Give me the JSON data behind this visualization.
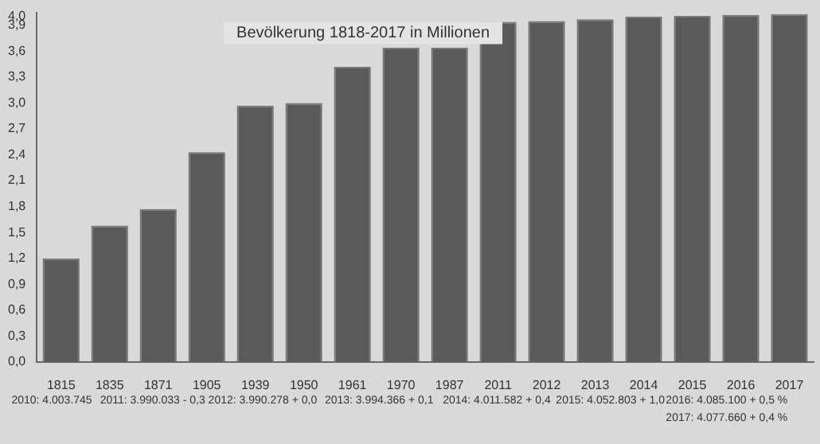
{
  "chart_data": {
    "type": "bar",
    "title": "Bevölkerung 1818-2017 in Millionen",
    "categories": [
      "1815",
      "1835",
      "1871",
      "1905",
      "1939",
      "1950",
      "1961",
      "1970",
      "1987",
      "2011",
      "2012",
      "2013",
      "2014",
      "2015",
      "2016",
      "2017"
    ],
    "values": [
      1.2,
      1.58,
      1.77,
      2.43,
      2.97,
      3.0,
      3.42,
      3.64,
      3.64,
      3.94,
      3.95,
      3.97,
      4.0,
      4.01,
      4.02,
      4.03
    ],
    "color": "#5a5a5a",
    "ylim": [
      0,
      4.05
    ],
    "yticks": [
      {
        "value": 0,
        "label": "0,0"
      },
      {
        "value": 0.3,
        "label": "0,3"
      },
      {
        "value": 0.6,
        "label": "0,6"
      },
      {
        "value": 0.9,
        "label": "0,9"
      },
      {
        "value": 1.2,
        "label": "1,2"
      },
      {
        "value": 1.5,
        "label": "1,5"
      },
      {
        "value": 1.8,
        "label": "1,8"
      },
      {
        "value": 2.1,
        "label": "2,1"
      },
      {
        "value": 2.4,
        "label": "2,4"
      },
      {
        "value": 2.7,
        "label": "2,7"
      },
      {
        "value": 3.0,
        "label": "3,0"
      },
      {
        "value": 3.3,
        "label": "3,3"
      },
      {
        "value": 3.6,
        "label": "3,6"
      },
      {
        "value": 3.9,
        "label": "3,9"
      },
      {
        "value": 4.0,
        "label": "4,0"
      }
    ],
    "grid": false,
    "legend": false,
    "annotations": [
      "2010: 4.003.745",
      "2011: 3.990.033 - 0,3",
      "2012: 3.990.278 + 0,0",
      "2013: 3.994.366 + 0,1",
      "2014: 4.011.582 + 0,4",
      "2015: 4.052.803 + 1,0",
      "2016: 4.085.100 + 0,5 %",
      "2017: 4.077.660 + 0,4 %"
    ]
  }
}
